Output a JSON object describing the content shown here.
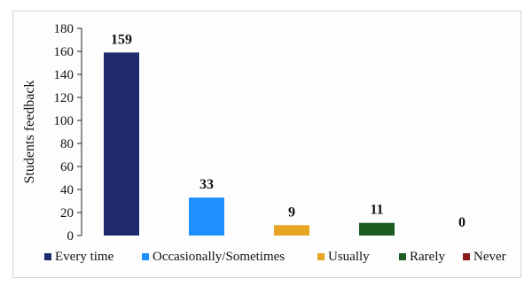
{
  "chart_data": {
    "type": "bar",
    "categories": [
      "Every time",
      "Occasionally/Sometimes",
      "Usually",
      "Rarely",
      "Never"
    ],
    "values": [
      159,
      33,
      9,
      11,
      0
    ],
    "colors": [
      "#1f2b6e",
      "#1e90ff",
      "#e8a524",
      "#1d5d22",
      "#8b1a1a"
    ],
    "title": "",
    "xlabel": "",
    "ylabel": "Students feedback",
    "ylim": [
      0,
      180
    ],
    "yticks": [
      0,
      20,
      40,
      60,
      80,
      100,
      120,
      140,
      160,
      180
    ],
    "grid": false,
    "legend_position": "bottom"
  }
}
